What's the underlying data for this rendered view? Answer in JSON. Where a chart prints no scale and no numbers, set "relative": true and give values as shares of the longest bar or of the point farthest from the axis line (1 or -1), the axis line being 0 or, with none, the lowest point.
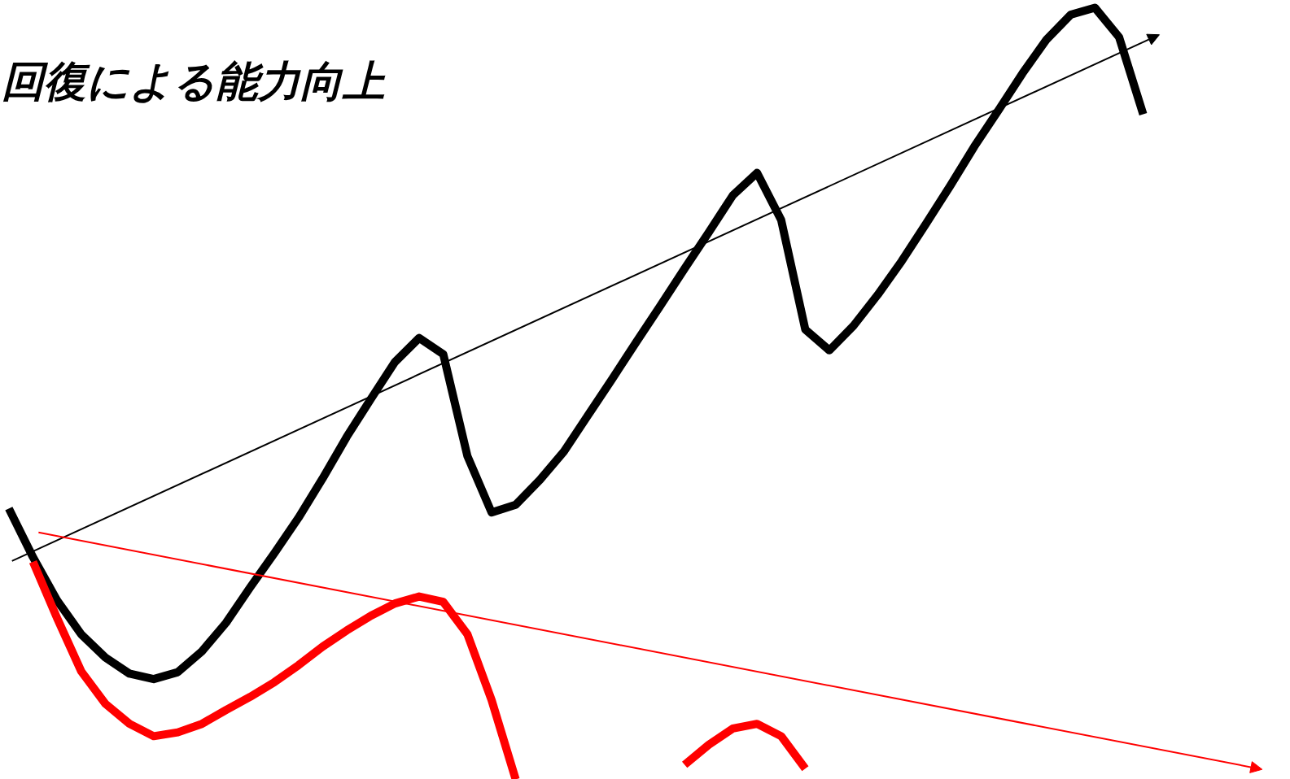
{
  "chart_data": {
    "type": "line",
    "relative": true,
    "title": "回復による能力向上",
    "categories": [
      null,
      null,
      null,
      null,
      null,
      null,
      null,
      null,
      null,
      null,
      null,
      null,
      null,
      null,
      null,
      null,
      null,
      null,
      null,
      null,
      null,
      null,
      null,
      null,
      null,
      null,
      null,
      null,
      null,
      null,
      null,
      null,
      null,
      null,
      null,
      null,
      null,
      null,
      null,
      null,
      null,
      null,
      null,
      null,
      null,
      null,
      null,
      null,
      null,
      null,
      null,
      null,
      null
    ],
    "series": [
      {
        "color": "#000000",
        "values": [
          0.351,
          0.288,
          0.232,
          0.188,
          0.158,
          0.137,
          0.13,
          0.139,
          0.166,
          0.203,
          0.249,
          0.293,
          0.339,
          0.39,
          0.444,
          0.493,
          0.541,
          0.572,
          0.551,
          0.419,
          0.346,
          0.356,
          0.388,
          0.425,
          0.472,
          0.519,
          0.567,
          0.614,
          0.662,
          0.709,
          0.757,
          0.786,
          0.725,
          0.583,
          0.556,
          0.588,
          0.628,
          0.672,
          0.72,
          0.769,
          0.82,
          0.867,
          0.915,
          0.959,
          0.991,
          1.0,
          0.962,
          0.862,
          null,
          null,
          null,
          null,
          null
        ]
      },
      {
        "color": "#ff0000",
        "values": [
          null,
          0.282,
          0.209,
          0.14,
          0.098,
          0.072,
          0.056,
          0.061,
          0.072,
          0.09,
          0.107,
          0.126,
          0.148,
          0.172,
          0.193,
          0.212,
          0.228,
          0.237,
          0.23,
          0.188,
          0.103,
          0.0,
          null,
          null,
          null,
          null,
          null,
          null,
          0.019,
          0.045,
          0.066,
          0.072,
          0.056,
          0.014,
          null,
          null,
          null,
          null,
          null,
          null,
          null,
          null,
          null,
          null,
          null,
          null,
          null,
          null,
          null,
          null,
          null,
          null,
          null
        ]
      }
    ]
  }
}
